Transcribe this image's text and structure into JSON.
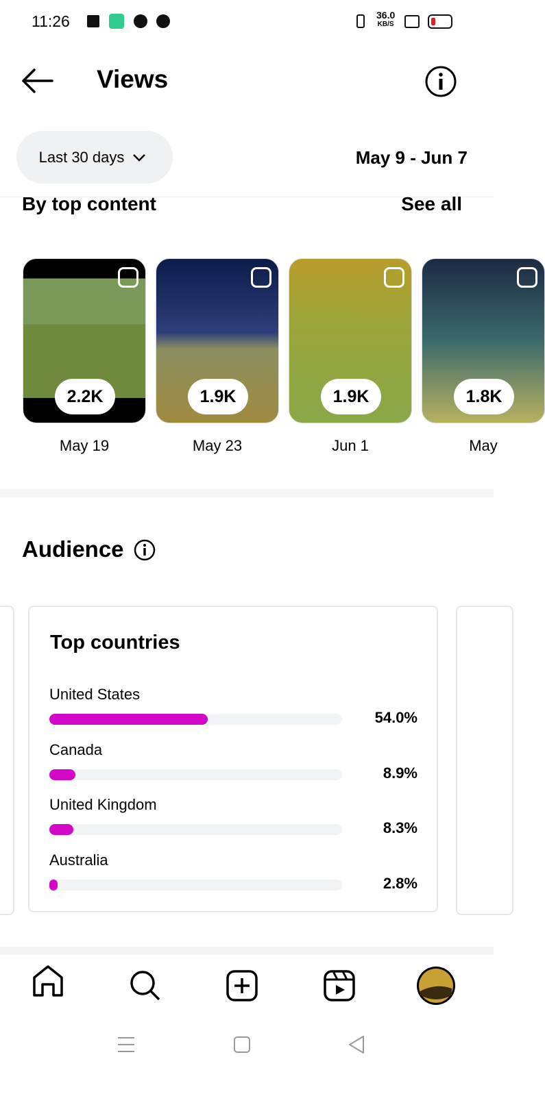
{
  "status_bar": {
    "time": "11:26",
    "speed": "36.0",
    "speed_unit": "KB/S"
  },
  "header": {
    "title": "Views"
  },
  "filter": {
    "range": "Last 30 days",
    "dates": "May 9 - Jun 7"
  },
  "top_content": {
    "title": "By top content",
    "see_all": "See all",
    "items": [
      {
        "views": "2.2K",
        "date": "May 19"
      },
      {
        "views": "1.9K",
        "date": "May 23"
      },
      {
        "views": "1.9K",
        "date": "Jun 1"
      },
      {
        "views": "1.8K",
        "date": "May"
      }
    ]
  },
  "audience": {
    "title": "Audience",
    "top_countries": {
      "title": "Top countries",
      "xlim": [
        0,
        100
      ],
      "rows": [
        {
          "name": "United States",
          "value": 54.0,
          "label": "54.0%"
        },
        {
          "name": "Canada",
          "value": 8.9,
          "label": "8.9%"
        },
        {
          "name": "United Kingdom",
          "value": 8.3,
          "label": "8.3%"
        },
        {
          "name": "Australia",
          "value": 2.8,
          "label": "2.8%"
        }
      ]
    }
  }
}
